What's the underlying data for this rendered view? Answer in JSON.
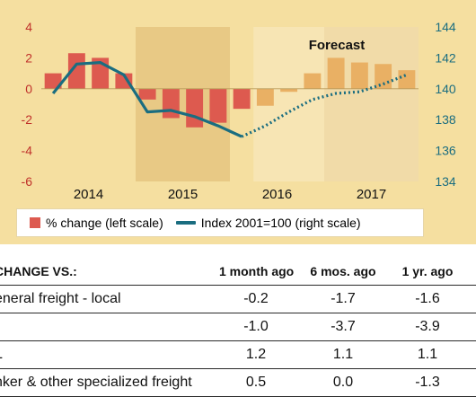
{
  "chart_data": {
    "type": "bar",
    "title": "",
    "forecast_label": "Forecast",
    "years": [
      "2014",
      "2015",
      "2016",
      "2017"
    ],
    "left_axis": {
      "ticks": [
        "4",
        "2",
        "0",
        "-2",
        "-4",
        "-6"
      ],
      "ylim": [
        -6,
        4
      ]
    },
    "right_axis": {
      "ticks": [
        "144",
        "142",
        "140",
        "138",
        "136",
        "134"
      ],
      "ylim": [
        134,
        144
      ]
    },
    "quarters": [
      "2014Q1",
      "2014Q2",
      "2014Q3",
      "2014Q4",
      "2015Q1",
      "2015Q2",
      "2015Q3",
      "2015Q4",
      "2016Q1",
      "2016Q2",
      "2016Q3",
      "2016Q4",
      "2017Q1",
      "2017Q2",
      "2017Q3",
      "2017Q4"
    ],
    "forecast_start_index": 9,
    "series": [
      {
        "name": "% change (left scale)",
        "kind": "bar",
        "values": [
          1.0,
          2.3,
          2.0,
          1.0,
          -0.7,
          -1.9,
          -2.5,
          -2.2,
          -1.3,
          -1.1,
          -0.2,
          1.0,
          2.0,
          1.7,
          1.6,
          1.2
        ]
      },
      {
        "name": "Index 2001=100 (right scale)",
        "kind": "line",
        "values": [
          139.7,
          141.6,
          141.7,
          140.9,
          138.5,
          138.6,
          138.2,
          137.6,
          136.9,
          137.6,
          138.5,
          139.3,
          139.7,
          139.8,
          140.3,
          140.9
        ]
      }
    ],
    "colors": {
      "panel_bg": "#f5dfa0",
      "band_shade": "#e8c985",
      "band_forecast": "#f8eac4",
      "bar_actual": "#dd5a4f",
      "bar_forecast": "#e9b064",
      "line": "#1a6d80",
      "left_axis": "#c0322b",
      "right_axis": "#1a6d80"
    }
  },
  "legend": {
    "bar_label": "% change (left scale)",
    "line_label": "Index 2001=100 (right scale)"
  },
  "table": {
    "header": [
      "CHANGE VS.:",
      "1 month ago",
      "6 mos. ago",
      "1 yr. ago"
    ],
    "rows": [
      {
        "label": "eneral freight - local",
        "values": [
          "-0.2",
          "-1.7",
          "-1.6"
        ]
      },
      {
        "label": "",
        "values": [
          "-1.0",
          "-3.7",
          "-3.9"
        ]
      },
      {
        "label": "L",
        "values": [
          "1.2",
          "1.1",
          "1.1"
        ]
      },
      {
        "label": "nker & other specialized freight",
        "values": [
          "0.5",
          "0.0",
          "-1.3"
        ]
      }
    ]
  }
}
